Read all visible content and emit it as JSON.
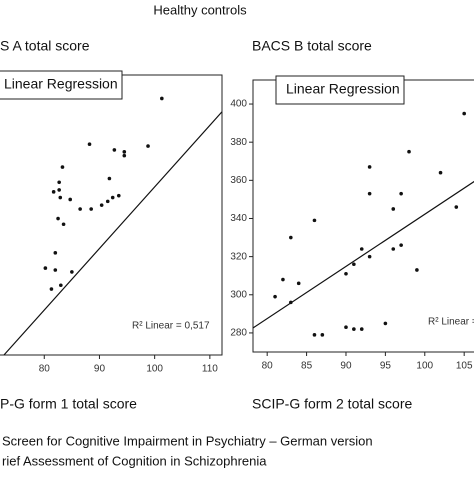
{
  "title": "Healthy controls",
  "chart_data": [
    {
      "type": "scatter",
      "title": "S A total score",
      "x_label": "P-G form 1 total score",
      "legend_label": "Linear Regression",
      "annotation": "R² Linear = 0,517",
      "color": "#111111",
      "x": [
        101.3,
        94.5,
        88.2,
        92.7,
        98.8,
        94.5,
        83.3,
        91.8,
        82.7,
        82.7,
        82.9,
        93.5,
        92.4,
        91.5,
        81.7,
        84.7,
        90.4,
        88.5,
        86.5,
        82.5,
        83.5,
        82,
        80.2,
        82,
        85,
        81.3,
        83
      ],
      "y": [
        403,
        375,
        379,
        376,
        378,
        373,
        367,
        361,
        359,
        355,
        351,
        352,
        351,
        349,
        354,
        350,
        347,
        345,
        345,
        340,
        337,
        322,
        314,
        313,
        312,
        303,
        305
      ],
      "fit": {
        "x": [
          72.7,
          112.2
        ],
        "y": [
          268.4,
          396
        ]
      },
      "xlim": [
        71.8,
        112.2
      ],
      "ylim": [
        268.4,
        415.3
      ],
      "xticks": [
        80,
        90,
        100,
        110
      ]
    },
    {
      "type": "scatter",
      "title": "BACS B total score",
      "x_label": "SCIP-G form 2 total score",
      "legend_label": "Linear Regression",
      "annotation": "R² Linear =",
      "color": "#111111",
      "x": [
        81,
        82,
        83,
        83,
        84,
        86,
        86,
        87,
        90,
        90,
        91,
        91,
        92,
        92,
        93,
        93,
        93,
        95,
        96,
        96,
        97,
        97,
        98,
        99,
        102,
        104,
        105
      ],
      "y": [
        299,
        308,
        296,
        330,
        306,
        339,
        279,
        279,
        283,
        311,
        316,
        282,
        324,
        282,
        320,
        367,
        353,
        285,
        345,
        324,
        326,
        353,
        375,
        313,
        364,
        346,
        395
      ],
      "fit": {
        "x": [
          78.2,
          106.5
        ],
        "y": [
          282.6,
          360
        ]
      },
      "xlim": [
        78.2,
        106.5
      ],
      "ylim": [
        270,
        412.6
      ],
      "xticks": [
        80,
        85,
        90,
        95,
        100,
        105
      ],
      "yticks": [
        280,
        300,
        320,
        340,
        360,
        380,
        400
      ]
    }
  ],
  "footnotes": [
    "Screen for Cognitive Impairment in Psychiatry – German version",
    "rief Assessment of Cognition in Schizophrenia"
  ]
}
